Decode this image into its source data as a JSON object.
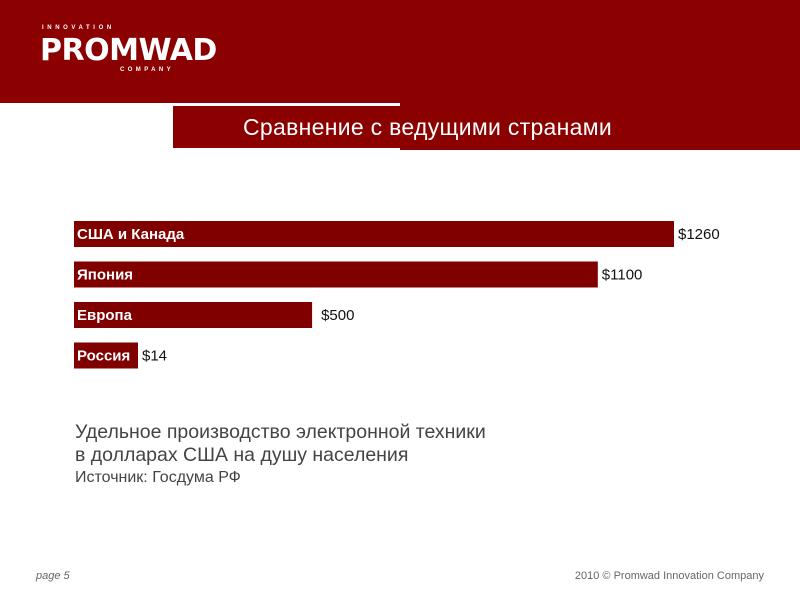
{
  "logo": {
    "top": "INNOVATION",
    "word": "PROMWAD",
    "bottom": "COMPANY"
  },
  "title": "Сравнение с ведущими странами",
  "colors": {
    "brand": "#8b0000",
    "bar": "#800000",
    "text": "#444444"
  },
  "chart_data": {
    "type": "bar",
    "orientation": "horizontal",
    "categories": [
      "США и Канада",
      "Япония",
      "Европа",
      "Россия"
    ],
    "values": [
      1260,
      1100,
      500,
      14
    ],
    "value_labels": [
      "$1260",
      "$1100",
      "$500",
      "$14"
    ],
    "unit": "USD",
    "grid": false
  },
  "caption": {
    "line1": "Удельное производство электронной техники",
    "line2": "в долларах США на душу населения",
    "source": "Источник: Госдума РФ"
  },
  "footer": {
    "page": "page 5",
    "copyright": "2010 © Promwad Innovation Company"
  }
}
